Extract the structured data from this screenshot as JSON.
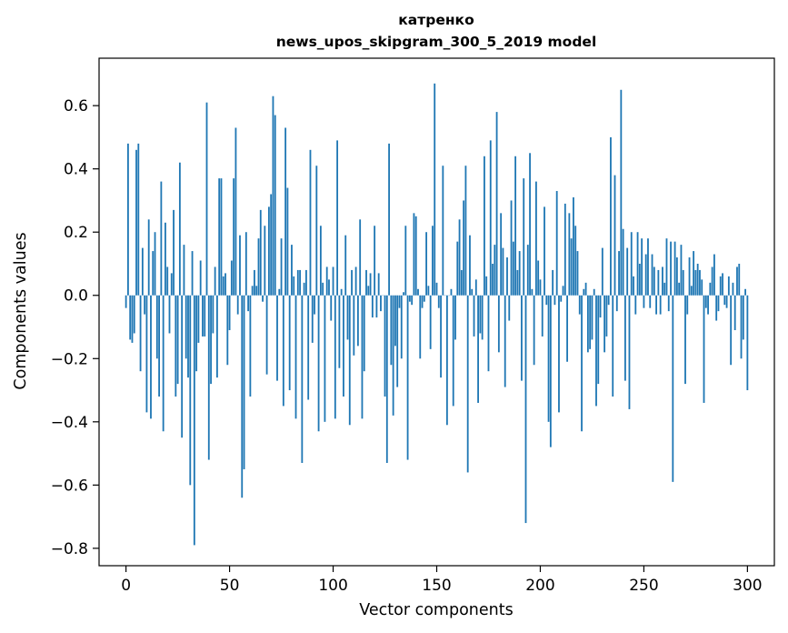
{
  "chart_data": {
    "type": "bar",
    "title_line1": "катренко",
    "title_line2": "news_upos_skipgram_300_5_2019 model",
    "xlabel": "Vector components",
    "ylabel": "Components values",
    "xlim": [
      -13,
      313
    ],
    "ylim": [
      -0.855,
      0.75
    ],
    "x_ticks": [
      0,
      50,
      100,
      150,
      200,
      250,
      300
    ],
    "x_tick_labels": [
      "0",
      "50",
      "100",
      "150",
      "200",
      "250",
      "300"
    ],
    "y_ticks": [
      -0.8,
      -0.6,
      -0.4,
      -0.2,
      0.0,
      0.2,
      0.4,
      0.6
    ],
    "y_tick_labels": [
      "−0.8",
      "−0.6",
      "−0.4",
      "−0.2",
      "0.0",
      "0.2",
      "0.4",
      "0.6"
    ],
    "bar_color": "#1f77b4",
    "grid": false,
    "values": [
      -0.04,
      0.48,
      -0.14,
      -0.15,
      -0.12,
      0.46,
      0.48,
      -0.24,
      0.15,
      -0.06,
      -0.37,
      0.24,
      -0.39,
      0.14,
      0.2,
      -0.2,
      -0.32,
      0.36,
      -0.43,
      0.23,
      0.09,
      -0.12,
      0.07,
      0.27,
      -0.32,
      -0.28,
      0.42,
      -0.45,
      0.16,
      -0.2,
      -0.26,
      -0.6,
      0.14,
      -0.79,
      -0.24,
      -0.15,
      0.11,
      -0.13,
      -0.13,
      0.61,
      -0.52,
      -0.28,
      -0.12,
      0.09,
      -0.26,
      0.37,
      0.37,
      0.06,
      0.07,
      -0.22,
      -0.11,
      0.11,
      0.37,
      0.53,
      -0.06,
      0.19,
      -0.64,
      -0.55,
      0.2,
      -0.05,
      -0.32,
      0.03,
      0.08,
      0.03,
      0.18,
      0.27,
      -0.02,
      0.22,
      -0.25,
      0.28,
      0.32,
      0.63,
      0.57,
      -0.27,
      0.02,
      0.18,
      -0.35,
      0.53,
      0.34,
      -0.3,
      0.16,
      0.06,
      -0.39,
      0.08,
      0.08,
      -0.53,
      0.04,
      0.08,
      -0.33,
      0.46,
      -0.15,
      -0.06,
      0.41,
      -0.43,
      0.22,
      0.04,
      -0.4,
      0.09,
      0.05,
      -0.08,
      0.09,
      -0.39,
      0.49,
      -0.23,
      0.02,
      -0.32,
      0.19,
      -0.14,
      -0.41,
      0.08,
      -0.19,
      0.09,
      -0.16,
      0.24,
      -0.39,
      -0.24,
      0.08,
      0.03,
      0.07,
      -0.07,
      0.22,
      -0.07,
      0.07,
      -0.05,
      0.0,
      -0.32,
      -0.53,
      0.48,
      -0.22,
      -0.38,
      -0.16,
      -0.29,
      -0.04,
      -0.2,
      0.01,
      0.22,
      -0.52,
      -0.02,
      -0.03,
      0.26,
      0.25,
      0.02,
      -0.2,
      -0.04,
      -0.02,
      0.2,
      0.03,
      -0.17,
      0.22,
      0.67,
      0.04,
      -0.04,
      -0.26,
      0.41,
      0.0,
      -0.41,
      0.0,
      0.02,
      -0.35,
      -0.14,
      0.17,
      0.24,
      0.08,
      0.3,
      0.41,
      -0.56,
      0.19,
      0.02,
      -0.13,
      0.05,
      -0.34,
      -0.12,
      -0.14,
      0.44,
      0.06,
      -0.24,
      0.49,
      0.1,
      0.16,
      0.58,
      -0.18,
      0.26,
      0.15,
      -0.29,
      0.12,
      -0.08,
      0.3,
      0.17,
      0.44,
      0.08,
      0.14,
      -0.27,
      0.37,
      -0.72,
      0.16,
      0.45,
      0.02,
      -0.22,
      0.36,
      0.11,
      0.05,
      -0.13,
      0.28,
      -0.03,
      -0.4,
      -0.48,
      0.08,
      -0.03,
      0.33,
      -0.37,
      -0.02,
      0.03,
      0.29,
      -0.21,
      0.26,
      0.18,
      0.31,
      0.22,
      0.14,
      -0.06,
      -0.43,
      0.02,
      0.04,
      -0.18,
      -0.17,
      -0.14,
      0.02,
      -0.35,
      -0.28,
      -0.07,
      0.15,
      -0.18,
      -0.13,
      -0.03,
      0.5,
      -0.32,
      0.38,
      -0.05,
      0.14,
      0.65,
      0.21,
      -0.27,
      0.15,
      -0.36,
      0.2,
      0.06,
      -0.06,
      0.2,
      0.1,
      0.18,
      -0.04,
      0.13,
      0.18,
      -0.04,
      0.13,
      0.09,
      -0.06,
      0.08,
      -0.06,
      0.09,
      0.04,
      0.18,
      -0.05,
      0.17,
      -0.59,
      0.17,
      0.12,
      0.04,
      0.16,
      0.08,
      -0.28,
      -0.06,
      0.12,
      0.03,
      0.14,
      0.08,
      0.1,
      0.08,
      0.05,
      -0.34,
      -0.04,
      -0.06,
      0.04,
      0.09,
      0.13,
      -0.08,
      -0.05,
      0.06,
      0.07,
      -0.03,
      -0.04,
      0.06,
      -0.22,
      0.04,
      -0.11,
      0.09,
      0.1,
      -0.2,
      -0.14,
      0.02,
      -0.3
    ]
  }
}
